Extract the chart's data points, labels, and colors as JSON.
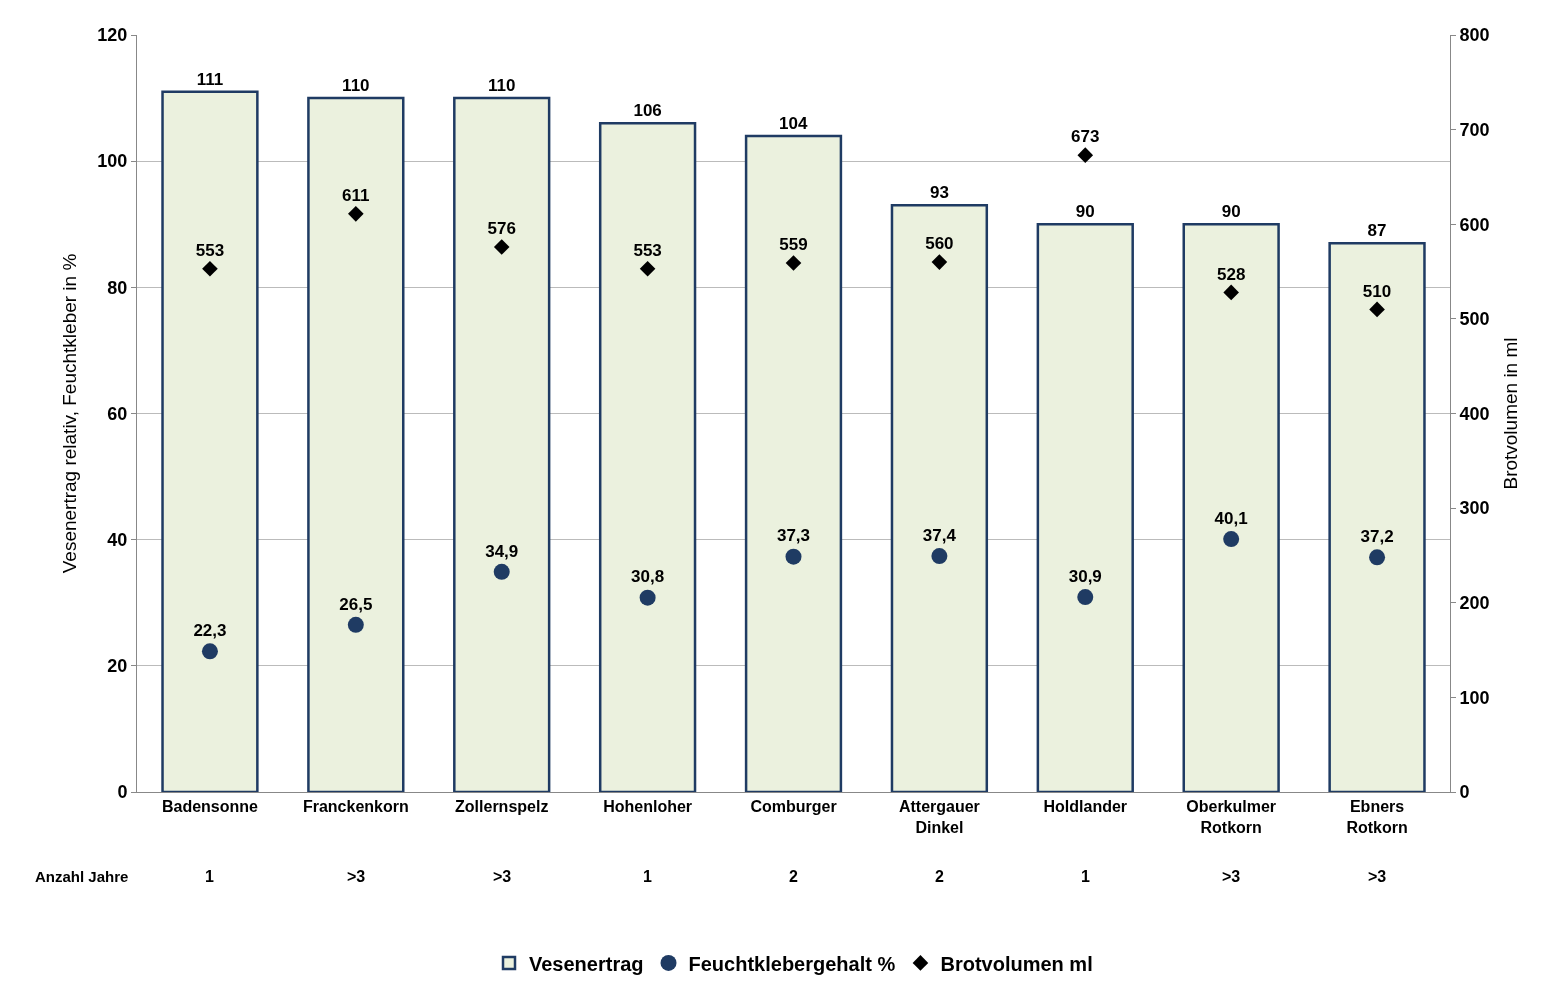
{
  "chart_data": {
    "type": "bar",
    "categories": [
      "Badensonne",
      "Franckenkorn",
      "Zollernspelz",
      "Hohenloher",
      "Comburger",
      "Attergauer Dinkel",
      "Holdlander",
      "Oberkulmer Rotkorn",
      "Ebners Rotkorn"
    ],
    "series": [
      {
        "name": "Vesenertrag",
        "color": "#ebf1de",
        "values": [
          111,
          110,
          110,
          106,
          104,
          93,
          90,
          90,
          87
        ],
        "value_labels": [
          "111",
          "110",
          "110",
          "106",
          "104",
          "93",
          "90",
          "90",
          "87"
        ]
      },
      {
        "name": "Feuchtklebergehalt %",
        "type": "scatter",
        "marker": "circle",
        "color": "#1f3b63",
        "values": [
          22.3,
          26.5,
          34.9,
          30.8,
          37.3,
          37.4,
          30.9,
          40.1,
          37.2
        ],
        "value_labels": [
          "22,3",
          "26,5",
          "34,9",
          "30,8",
          "37,3",
          "37,4",
          "30,9",
          "40,1",
          "37,2"
        ]
      },
      {
        "name": "Brotvolumen ml",
        "type": "scatter",
        "marker": "diamond",
        "axis": "y2",
        "color": "#000000",
        "values": [
          553,
          611,
          576,
          553,
          559,
          560,
          673,
          528,
          510
        ],
        "value_labels": [
          "553",
          "611",
          "576",
          "553",
          "559",
          "560",
          "673",
          "528",
          "510"
        ]
      }
    ],
    "ylabel": "Vesenertrag relativ, Feuchtkleber in %",
    "y2label": "Brotvolumen in ml",
    "ylim": [
      0,
      120
    ],
    "yticks": [
      0,
      20,
      40,
      60,
      80,
      100,
      120
    ],
    "y2lim": [
      0,
      800
    ],
    "y2ticks": [
      0,
      100,
      200,
      300,
      400,
      500,
      600,
      700,
      800
    ],
    "grid": "y",
    "legend": "bottom",
    "annotations": [
      "Anzahl Jahre",
      "1",
      ">3",
      ">3",
      "1",
      "2",
      "2",
      "1",
      ">3",
      ">3"
    ]
  }
}
